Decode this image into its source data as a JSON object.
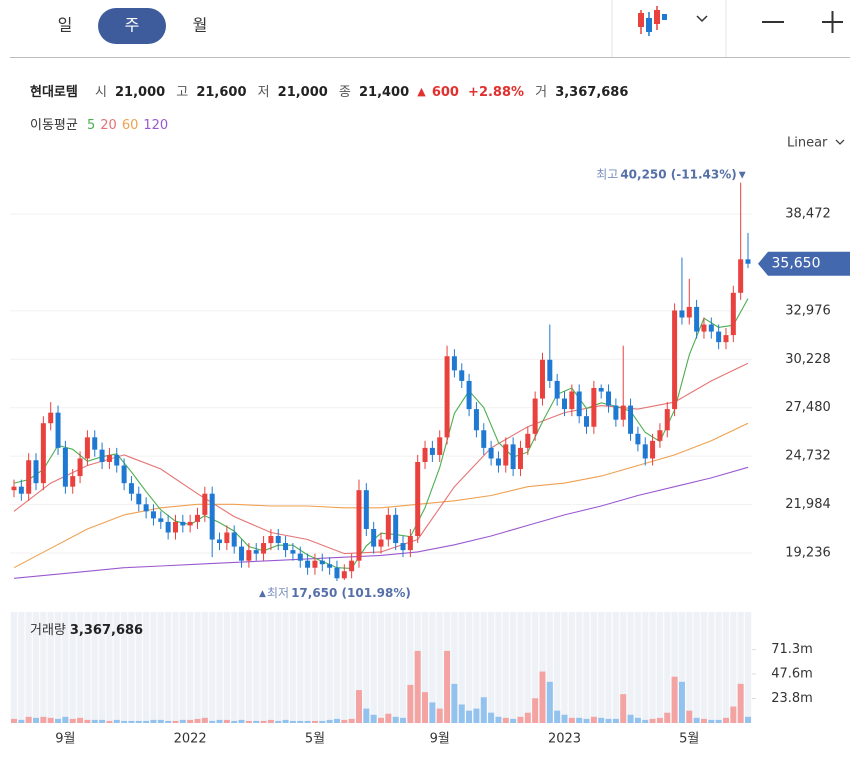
{
  "toolbar": {
    "tabs": [
      "일",
      "주",
      "월"
    ],
    "active": 1
  },
  "header": {
    "name": "현대로템",
    "fields": [
      {
        "label": "시",
        "value": "21,000"
      },
      {
        "label": "고",
        "value": "21,600"
      },
      {
        "label": "저",
        "value": "21,000"
      },
      {
        "label": "종",
        "value": "21,400"
      }
    ],
    "change_arrow": "▲",
    "change": "600",
    "change_pct": "+2.88%",
    "volume_label": "거",
    "volume": "3,367,686"
  },
  "ma_legend": "이동평균",
  "scale": "Linear",
  "chart_data": {
    "type": "candlestick",
    "up_color": "#e8413e",
    "down_color": "#1f78d1",
    "grid": true,
    "ylim": [
      16285,
      42104
    ],
    "yticks": [
      {
        "value": 19236,
        "label": "19,236"
      },
      {
        "value": 21984,
        "label": "21,984"
      },
      {
        "value": 24732,
        "label": "24,732"
      },
      {
        "value": 27480,
        "label": "27,480"
      },
      {
        "value": 30228,
        "label": "30,228"
      },
      {
        "value": 32976,
        "label": "32,976"
      },
      {
        "value": 38472,
        "label": "38,472"
      }
    ],
    "xticks": [
      {
        "value": 7,
        "label": "9월"
      },
      {
        "value": 24,
        "label": "2022"
      },
      {
        "value": 41,
        "label": "5월"
      },
      {
        "value": 58,
        "label": "9월"
      },
      {
        "value": 75,
        "label": "2023"
      },
      {
        "value": 92,
        "label": "5월"
      }
    ],
    "candles": [
      [
        22800,
        23400,
        22400,
        23000
      ],
      [
        23000,
        23400,
        22200,
        22600
      ],
      [
        22600,
        24900,
        22200,
        24500
      ],
      [
        24500,
        24900,
        22800,
        23200
      ],
      [
        23200,
        27000,
        22800,
        26600
      ],
      [
        26600,
        27800,
        26200,
        27200
      ],
      [
        27200,
        27600,
        24800,
        25200
      ],
      [
        25200,
        25600,
        22600,
        23000
      ],
      [
        23000,
        24000,
        22600,
        23600
      ],
      [
        23600,
        25000,
        23200,
        24600
      ],
      [
        24600,
        26200,
        24200,
        25800
      ],
      [
        25800,
        26200,
        24700,
        25100
      ],
      [
        25100,
        25500,
        24000,
        24400
      ],
      [
        24400,
        25200,
        24000,
        24800
      ],
      [
        24800,
        25200,
        23800,
        24200
      ],
      [
        24200,
        24600,
        22800,
        23200
      ],
      [
        23200,
        23600,
        22200,
        22600
      ],
      [
        22600,
        23000,
        21600,
        22000
      ],
      [
        22000,
        22400,
        21200,
        21600
      ],
      [
        21600,
        22000,
        20800,
        21200
      ],
      [
        21200,
        21600,
        20600,
        21000
      ],
      [
        21000,
        21400,
        20000,
        20400
      ],
      [
        20400,
        21400,
        20000,
        21000
      ],
      [
        21000,
        21400,
        20400,
        20800
      ],
      [
        20800,
        21400,
        20400,
        21000
      ],
      [
        21000,
        21800,
        20600,
        21400
      ],
      [
        21400,
        23000,
        21000,
        22600
      ],
      [
        22600,
        23000,
        19000,
        20000
      ],
      [
        20000,
        20400,
        19400,
        19800
      ],
      [
        19800,
        20800,
        19400,
        20400
      ],
      [
        20400,
        20800,
        19200,
        19600
      ],
      [
        19600,
        20000,
        18400,
        18800
      ],
      [
        18800,
        19800,
        18400,
        19400
      ],
      [
        19400,
        19800,
        18800,
        19200
      ],
      [
        19200,
        20200,
        18800,
        19800
      ],
      [
        19800,
        20600,
        19400,
        20200
      ],
      [
        20200,
        20600,
        19400,
        19800
      ],
      [
        19800,
        20200,
        19000,
        19400
      ],
      [
        19400,
        19800,
        18800,
        19200
      ],
      [
        19200,
        19600,
        18400,
        18800
      ],
      [
        18800,
        19200,
        18000,
        18400
      ],
      [
        18400,
        19200,
        18000,
        18800
      ],
      [
        18800,
        19200,
        18200,
        18600
      ],
      [
        18600,
        19000,
        18000,
        18400
      ],
      [
        18400,
        18800,
        17650,
        17800
      ],
      [
        17800,
        18600,
        17700,
        18200
      ],
      [
        18200,
        19200,
        17800,
        18800
      ],
      [
        18800,
        23400,
        18400,
        22800
      ],
      [
        22800,
        23200,
        20200,
        20600
      ],
      [
        20600,
        21000,
        19200,
        19600
      ],
      [
        19600,
        20400,
        19200,
        20000
      ],
      [
        20000,
        21800,
        19600,
        21400
      ],
      [
        21400,
        21800,
        19400,
        19800
      ],
      [
        19800,
        20200,
        19000,
        19400
      ],
      [
        19400,
        20600,
        19000,
        20200
      ],
      [
        20200,
        24800,
        19800,
        24400
      ],
      [
        24400,
        25600,
        24000,
        25200
      ],
      [
        25200,
        25600,
        24400,
        24800
      ],
      [
        24800,
        26200,
        24400,
        25800
      ],
      [
        25800,
        31000,
        25400,
        30400
      ],
      [
        30400,
        30800,
        29200,
        29600
      ],
      [
        29600,
        30000,
        28600,
        29000
      ],
      [
        29000,
        29400,
        27000,
        27400
      ],
      [
        27400,
        27800,
        25800,
        26200
      ],
      [
        26200,
        26600,
        24800,
        25200
      ],
      [
        25200,
        25600,
        24200,
        24600
      ],
      [
        24600,
        25000,
        23800,
        24200
      ],
      [
        24200,
        25800,
        23800,
        25400
      ],
      [
        25400,
        25800,
        23600,
        24000
      ],
      [
        24000,
        25600,
        23600,
        25200
      ],
      [
        25200,
        26400,
        24800,
        26000
      ],
      [
        26000,
        28400,
        25600,
        28000
      ],
      [
        28000,
        30600,
        27600,
        30200
      ],
      [
        30200,
        32200,
        28600,
        29000
      ],
      [
        29000,
        29400,
        27600,
        28000
      ],
      [
        28000,
        28400,
        27000,
        27400
      ],
      [
        27400,
        28800,
        27000,
        28400
      ],
      [
        28400,
        28800,
        26600,
        27000
      ],
      [
        27000,
        27400,
        26000,
        26400
      ],
      [
        26400,
        29000,
        26000,
        28600
      ],
      [
        28600,
        28800,
        28000,
        28400
      ],
      [
        28400,
        28800,
        27200,
        27600
      ],
      [
        27600,
        28000,
        26400,
        26800
      ],
      [
        26800,
        31000,
        26400,
        27600
      ],
      [
        27600,
        28000,
        25600,
        26000
      ],
      [
        26000,
        26400,
        25000,
        25400
      ],
      [
        25400,
        25800,
        24200,
        24600
      ],
      [
        24600,
        26000,
        24200,
        25600
      ],
      [
        25600,
        26600,
        25200,
        26200
      ],
      [
        26200,
        27800,
        25800,
        27400
      ],
      [
        27400,
        33400,
        27000,
        33000
      ],
      [
        33000,
        36000,
        32200,
        32600
      ],
      [
        32600,
        34800,
        32200,
        33200
      ],
      [
        33200,
        33600,
        31400,
        31800
      ],
      [
        31800,
        32600,
        31400,
        32200
      ],
      [
        32200,
        32600,
        31400,
        31800
      ],
      [
        31800,
        32200,
        30800,
        31200
      ],
      [
        31200,
        32000,
        30800,
        31600
      ],
      [
        31600,
        34400,
        31200,
        34000
      ],
      [
        34000,
        40250,
        33600,
        35900
      ],
      [
        35900,
        37400,
        35400,
        35650
      ]
    ],
    "ma": [
      {
        "name": "5",
        "color": "#4caf50",
        "x": [
          0,
          2,
          4,
          6,
          8,
          10,
          12,
          14,
          16,
          18,
          20,
          22,
          24,
          26,
          28,
          30,
          32,
          34,
          36,
          38,
          40,
          42,
          44,
          46,
          48,
          50,
          52,
          54,
          56,
          58,
          60,
          62,
          64,
          66,
          68,
          70,
          72,
          74,
          76,
          78,
          80,
          82,
          84,
          86,
          88,
          90,
          92,
          94,
          96,
          98,
          100
        ],
        "values": [
          23200,
          23400,
          23980,
          25340,
          25120,
          24440,
          24700,
          24860,
          23840,
          22720,
          21680,
          21040,
          20840,
          21360,
          20960,
          20480,
          19600,
          19360,
          19680,
          19680,
          19120,
          18760,
          18400,
          18360,
          19640,
          20360,
          20280,
          20160,
          21800,
          24080,
          27160,
          28440,
          27480,
          25520,
          24680,
          24960,
          26680,
          28240,
          28600,
          27440,
          27760,
          27560,
          27280,
          26080,
          25560,
          27360,
          30480,
          32560,
          32040,
          32160,
          33670
        ]
      },
      {
        "name": "20",
        "color": "#e57373",
        "x": [
          0,
          5,
          10,
          15,
          20,
          25,
          30,
          35,
          40,
          45,
          50,
          55,
          60,
          65,
          70,
          75,
          80,
          85,
          90,
          95,
          100
        ],
        "values": [
          21600,
          23200,
          24200,
          24800,
          24000,
          22600,
          21300,
          20400,
          20000,
          19200,
          19300,
          20000,
          23000,
          25200,
          26400,
          27200,
          27600,
          27400,
          27800,
          29000,
          30000
        ]
      },
      {
        "name": "60",
        "color": "#f0a050",
        "x": [
          0,
          5,
          10,
          15,
          20,
          25,
          30,
          35,
          40,
          45,
          50,
          55,
          60,
          65,
          70,
          75,
          80,
          85,
          90,
          95,
          100
        ],
        "values": [
          18400,
          19500,
          20600,
          21400,
          21800,
          22000,
          22000,
          21900,
          21900,
          21800,
          21800,
          22000,
          22200,
          22500,
          23000,
          23200,
          23600,
          24200,
          24800,
          25600,
          26600
        ]
      },
      {
        "name": "120",
        "color": "#9b59d0",
        "x": [
          0,
          5,
          10,
          15,
          20,
          25,
          30,
          35,
          40,
          45,
          50,
          55,
          60,
          65,
          70,
          75,
          80,
          85,
          90,
          95,
          100
        ],
        "values": [
          17800,
          18000,
          18200,
          18400,
          18500,
          18600,
          18700,
          18800,
          18900,
          19000,
          19100,
          19300,
          19700,
          20200,
          20800,
          21400,
          21900,
          22500,
          23000,
          23500,
          24100
        ]
      }
    ],
    "annotations": {
      "high": {
        "label": "최고",
        "text": "40,250 (-11.43%)",
        "arrow": "▼",
        "value": 40250,
        "index": 99
      },
      "low": {
        "label": "최저",
        "text": "17,650 (101.98%)",
        "arrow": "▲",
        "value": 17650,
        "index": 44
      }
    },
    "last_price": {
      "value": 35650,
      "label": "35,650"
    },
    "volume": {
      "title": "거래량",
      "total": "3,367,686",
      "up_color": "#f4a3a3",
      "down_color": "#93c2ee",
      "ylim": [
        0,
        107.8
      ],
      "yticks": [
        {
          "value": 23.8,
          "label": "23.8m"
        },
        {
          "value": 47.6,
          "label": "47.6m"
        },
        {
          "value": 71.3,
          "label": "71.3m"
        }
      ],
      "values": [
        4,
        3,
        6,
        5,
        6,
        5,
        4,
        6,
        4,
        5,
        3,
        3,
        3,
        2,
        3,
        2,
        2,
        2,
        2,
        3,
        3,
        2,
        2,
        3,
        3,
        4,
        5,
        2,
        3,
        3,
        2,
        3,
        2,
        2,
        2,
        3,
        2,
        3,
        2,
        2,
        2,
        2,
        2,
        3,
        4,
        3,
        4,
        32,
        14,
        8,
        5,
        9,
        6,
        5,
        37,
        70,
        30,
        20,
        14,
        70,
        38,
        18,
        12,
        14,
        25,
        10,
        6,
        5,
        4,
        6,
        10,
        24,
        50,
        40,
        12,
        8,
        5,
        5,
        4,
        6,
        5,
        4,
        4,
        28,
        8,
        5,
        3,
        4,
        5,
        10,
        45,
        40,
        12,
        5,
        4,
        3,
        3,
        5,
        16,
        38,
        6
      ]
    }
  }
}
